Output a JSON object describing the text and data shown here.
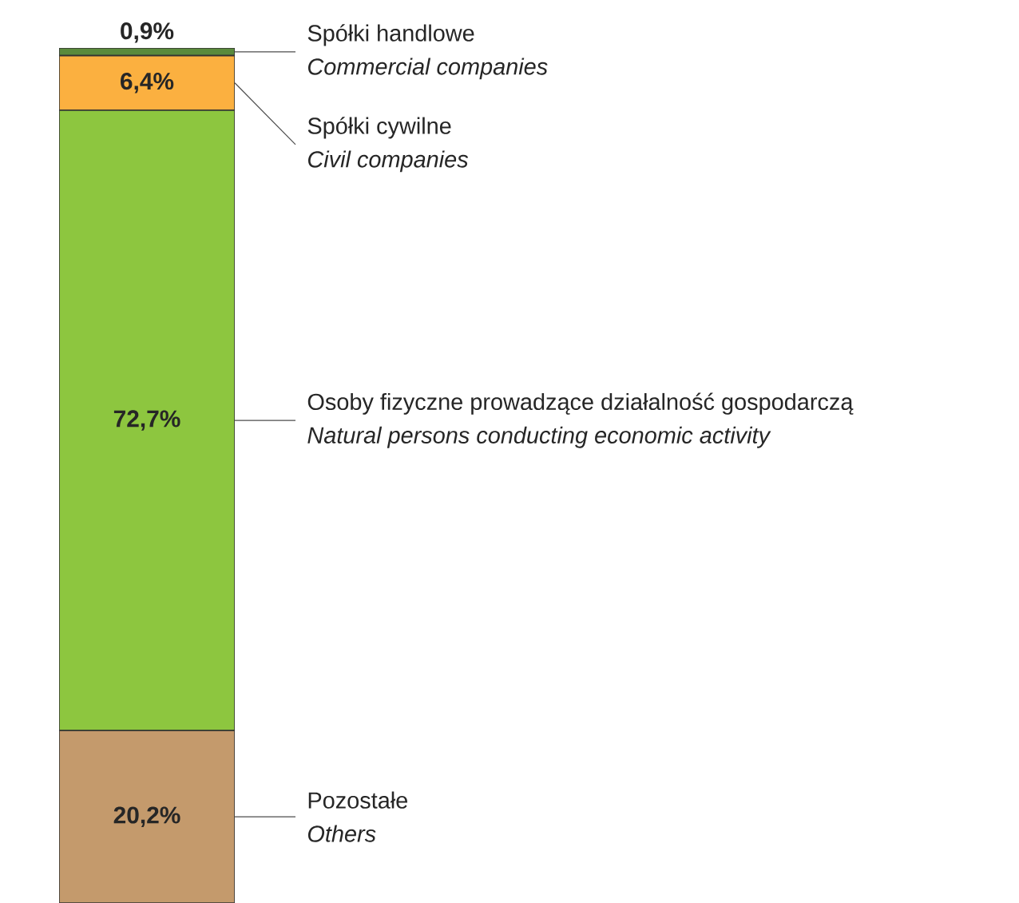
{
  "chart_data": {
    "type": "bar",
    "stacked": true,
    "categories": [
      null
    ],
    "series": [
      {
        "name": "Pozostałe",
        "color": "#c49a6c",
        "values": [
          20.2
        ],
        "value_labels": [
          "20,2%"
        ]
      },
      {
        "name": "Osoby fizyczne prowadzące działalność gospodarczą",
        "color": "#8dc63f",
        "values": [
          72.7
        ],
        "value_labels": [
          "72,7%"
        ]
      },
      {
        "name": "Spółki cywilne",
        "color": "#fbb040",
        "values": [
          6.4
        ],
        "value_labels": [
          "6,4%"
        ]
      },
      {
        "name": "Spółki handlowe",
        "color": "#5a8a3c",
        "values": [
          0.9
        ],
        "value_labels": [
          "0,9%"
        ]
      }
    ],
    "annotations": [
      "Others",
      "Natural persons conducting economic activity",
      "Civil companies",
      "Commercial companies"
    ]
  }
}
